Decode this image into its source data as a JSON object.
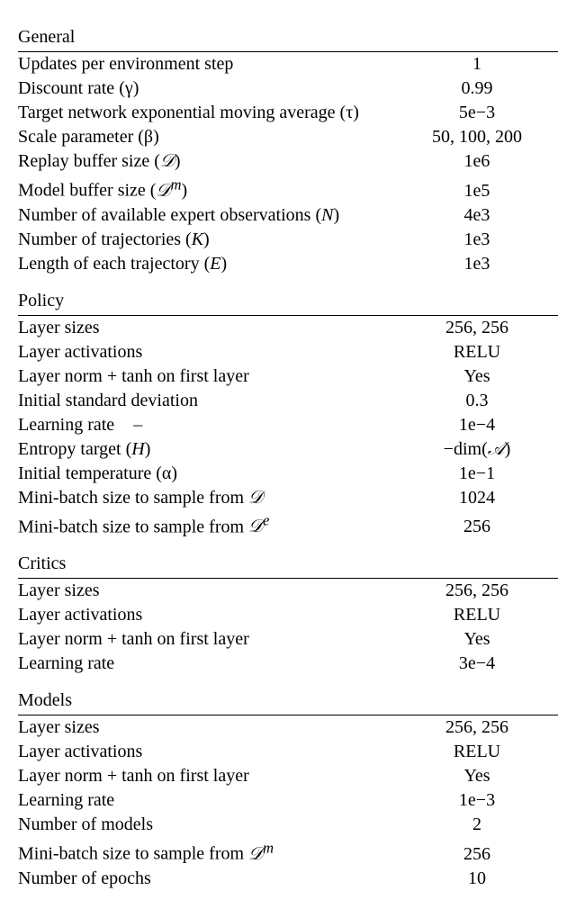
{
  "sections": [
    {
      "title": "General",
      "rows": [
        {
          "label_html": "Updates per environment step",
          "value_html": "1"
        },
        {
          "label_html": "Discount rate (<span class='sym'>&gamma;</span>)",
          "value_html": "0.99"
        },
        {
          "label_html": "Target network exponential moving average (<span class='sym'>&tau;</span>)",
          "value_html": "5e&minus;3"
        },
        {
          "label_html": "Scale parameter (<span class='sym'>&beta;</span>)",
          "value_html": "50, 100, 200"
        },
        {
          "label_html": "Replay buffer size (<span style='font-family:serif'><i>𝒟</i></span>)",
          "value_html": "1e6"
        },
        {
          "label_html": "Model buffer size (<span style='font-family:serif'><i>𝒟</i><sup><i>m</i></sup></span>)",
          "value_html": "1e5"
        },
        {
          "label_html": "Number of available expert observations (<i>N</i>)",
          "value_html": "4e3"
        },
        {
          "label_html": "Number of trajectories (<i>K</i>)",
          "value_html": "1e3"
        },
        {
          "label_html": "Length of each trajectory (<i>E</i>)",
          "value_html": "1e3"
        }
      ]
    },
    {
      "title": "Policy",
      "rows": [
        {
          "label_html": "Layer sizes",
          "value_html": "256, 256"
        },
        {
          "label_html": "Layer activations",
          "value_html": "RELU"
        },
        {
          "label_html": "Layer norm + tanh on first layer",
          "value_html": "Yes"
        },
        {
          "label_html": "Initial standard deviation",
          "value_html": "0.3"
        },
        {
          "label_html": "Learning rate",
          "value_html": "1e&minus;4"
        },
        {
          "label_html": "Entropy target (<span style='position:relative'><span style='position:absolute;left:2px;top:-0.85em'>&macr;</span><i>H</i></span>)",
          "value_html": "&minus;dim(<span style='font-family:serif'><i>𝒜</i></span>)"
        },
        {
          "label_html": "Initial temperature (<span class='sym'>&alpha;</span>)",
          "value_html": "1e&minus;1"
        },
        {
          "label_html": "Mini-batch size to sample from <span style='font-family:serif'><i>𝒟</i></span>",
          "value_html": "1024"
        },
        {
          "label_html": "Mini-batch size to sample from <span style='font-family:serif'><i>𝒟</i><sup><i>e</i></sup></span>",
          "value_html": "256"
        }
      ]
    },
    {
      "title": "Critics",
      "rows": [
        {
          "label_html": "Layer sizes",
          "value_html": "256, 256"
        },
        {
          "label_html": "Layer activations",
          "value_html": "RELU"
        },
        {
          "label_html": "Layer norm + tanh on first layer",
          "value_html": "Yes"
        },
        {
          "label_html": "Learning rate",
          "value_html": "3e&minus;4"
        }
      ]
    },
    {
      "title": "Models",
      "rows": [
        {
          "label_html": "Layer sizes",
          "value_html": "256, 256"
        },
        {
          "label_html": "Layer activations",
          "value_html": "RELU"
        },
        {
          "label_html": "Layer norm + tanh on first layer",
          "value_html": "Yes"
        },
        {
          "label_html": "Learning rate",
          "value_html": "1e&minus;3"
        },
        {
          "label_html": "Number of models",
          "value_html": "2"
        },
        {
          "label_html": "Mini-batch size to sample from <span style='font-family:serif'><i>𝒟</i><sup><i>m</i></sup></span>",
          "value_html": "256"
        },
        {
          "label_html": "Number of epochs",
          "value_html": "10"
        }
      ]
    }
  ]
}
